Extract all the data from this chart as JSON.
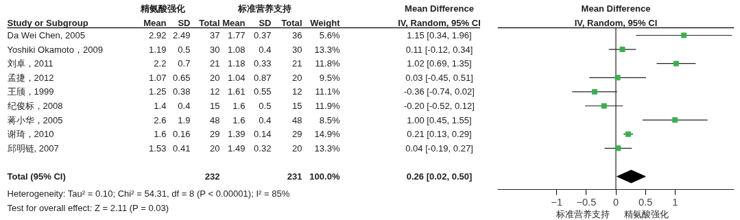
{
  "chart_data": [
    {
      "type": "other",
      "annotations": [
        "精氨酸强化",
        "标准营养支持",
        "Mean Difference",
        "Heterogeneity: Tau² = 0.10; Chi² = 54.31, df = 8 (P < 0.00001); I² = 85%",
        "Test for overall effect: Z = 2.11 (P = 0.03)"
      ],
      "categories": [
        "Study or Subgroup",
        "Mean",
        "SD",
        "Total",
        "Mean",
        "SD",
        "Total",
        "Weight",
        "IV, Random, 95% CI"
      ],
      "y_categories": [
        "Da Wei Chen, 2005",
        "Yoshiki Okamoto，2009",
        "刘卓，2011",
        "孟捷，2012",
        "王颀，1999",
        "纪俊标，2008",
        "蒋小华，2005",
        "谢琦，2010",
        "邱明链, 2007",
        null,
        "Total (95% CI)"
      ],
      "cell_labels": [
        [
          "2.92",
          "2.49",
          "37",
          "1.77",
          "0.37",
          "36",
          "5.6%",
          "1.15 [0.34, 1.96]"
        ],
        [
          "1.19",
          "0.5",
          "30",
          "1.08",
          "0.4",
          "30",
          "13.3%",
          "0.11 [-0.12, 0.34]"
        ],
        [
          "2.2",
          "0.7",
          "21",
          "1.18",
          "0.33",
          "21",
          "11.8%",
          "1.02 [0.69, 1.35]"
        ],
        [
          "1.07",
          "0.65",
          "20",
          "1.04",
          "0.87",
          "20",
          "9.5%",
          "0.03 [-0.45, 0.51]"
        ],
        [
          "1.25",
          "0.38",
          "12",
          "1.61",
          "0.55",
          "12",
          "11.1%",
          "-0.36 [-0.74, 0.02]"
        ],
        [
          "1.4",
          "0.4",
          "15",
          "1.6",
          "0.5",
          "15",
          "11.9%",
          "-0.20 [-0.52, 0.12]"
        ],
        [
          "2.6",
          "1.9",
          "48",
          "1.6",
          "0.4",
          "48",
          "8.5%",
          "1.00 [0.45, 1.55]"
        ],
        [
          "1.6",
          "0.16",
          "29",
          "1.39",
          "0.14",
          "29",
          "14.9%",
          "0.21 [0.13, 0.29]"
        ],
        [
          "1.53",
          "0.41",
          "20",
          "1.49",
          "0.32",
          "20",
          "13.3%",
          "0.04 [-0.19, 0.27]"
        ],
        [
          null,
          null,
          null,
          null,
          null,
          null,
          null,
          null
        ],
        [
          null,
          null,
          "232",
          null,
          null,
          "231",
          "100.0%",
          "0.26 [0.02, 0.50]"
        ]
      ]
    },
    {
      "type": "scatter",
      "title": "Mean Difference",
      "subtitle": "IV, Random, 95% CI",
      "orientation": "horizontal",
      "categories": [
        null,
        null,
        null,
        null,
        null,
        null,
        null,
        null,
        null,
        null,
        null
      ],
      "series": [
        {
          "marker": "square",
          "color": "#33b44a",
          "values": [
            1.15,
            0.11,
            1.02,
            0.03,
            -0.36,
            -0.2,
            1.0,
            0.21,
            0.04,
            null,
            null
          ],
          "errors": [
            [
              0.34,
              1.96
            ],
            [
              -0.12,
              0.34
            ],
            [
              0.69,
              1.35
            ],
            [
              -0.45,
              0.51
            ],
            [
              -0.74,
              0.02
            ],
            [
              -0.52,
              0.12
            ],
            [
              0.45,
              1.55
            ],
            [
              0.13,
              0.29
            ],
            [
              -0.19,
              0.27
            ],
            null,
            null
          ]
        },
        {
          "marker": "diamond",
          "color": "#000000",
          "values": [
            null,
            null,
            null,
            null,
            null,
            null,
            null,
            null,
            null,
            null,
            0.26
          ],
          "errors": [
            null,
            null,
            null,
            null,
            null,
            null,
            null,
            null,
            null,
            null,
            [
              0.02,
              0.5
            ]
          ]
        }
      ],
      "xlim": [
        -2,
        2
      ],
      "xticks": [
        -1,
        -0.5,
        0,
        0.5,
        1
      ],
      "ref_lines": [
        {
          "axis": "x",
          "value": 0
        }
      ],
      "annotations": [
        "标准营养支持",
        "精氨酸强化"
      ],
      "grid": false
    }
  ]
}
